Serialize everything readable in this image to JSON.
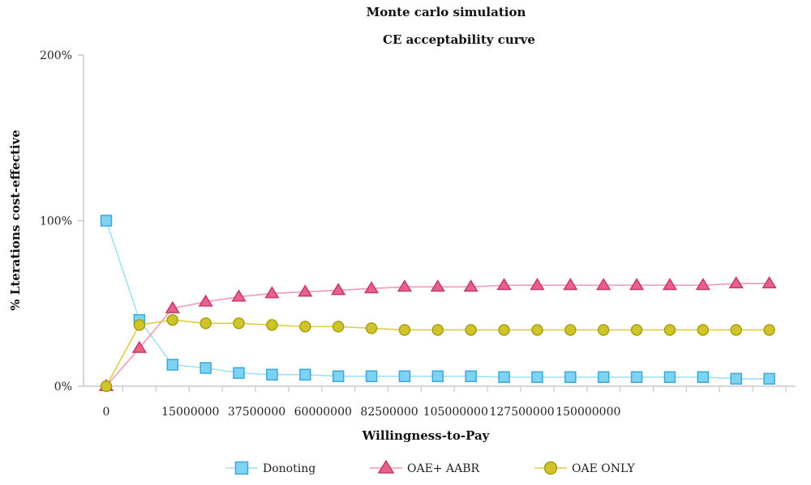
{
  "chart_data": {
    "type": "line",
    "title": "Monte carlo simulation",
    "subtitle": "CE acceptability curve",
    "xlabel": "Willingness-to-Pay",
    "ylabel": "% Lterations cost-effective",
    "ylim": [
      0,
      200
    ],
    "y_ticks": [
      "0%",
      "100%",
      "200%"
    ],
    "x_tick_labels": [
      "0",
      "15000000",
      "37500000",
      "60000000",
      "82500000",
      "105000000",
      "127500000",
      "150000000"
    ],
    "x_tick_positions": [
      0,
      2,
      4,
      6,
      8,
      10,
      12,
      14
    ],
    "x_count": 21,
    "grid": false,
    "legend_position": "bottom",
    "series": [
      {
        "name": "Donoting",
        "marker": "square",
        "color": "#7fd3f2",
        "stroke": "#3aa8d8",
        "line_color": "#9ee0f7",
        "values": [
          100,
          40,
          13,
          11,
          8,
          7,
          7,
          6,
          6,
          6,
          6,
          6,
          5.5,
          5.5,
          5.5,
          5.5,
          5.5,
          5.5,
          5.5,
          4.5,
          4.5
        ]
      },
      {
        "name": "OAE+ AABR",
        "marker": "triangle",
        "color": "#e8618a",
        "stroke": "#c43a66",
        "line_color": "#f29ab5",
        "values": [
          0,
          23,
          47,
          51,
          54,
          56,
          57,
          58,
          59,
          60,
          60,
          60,
          61,
          61,
          61,
          61,
          61,
          61,
          61,
          62,
          62
        ]
      },
      {
        "name": "OAE ONLY",
        "marker": "circle",
        "color": "#cfc42a",
        "stroke": "#a89e10",
        "line_color": "#d9cf45",
        "values": [
          0,
          37,
          40,
          38,
          38,
          37,
          36,
          36,
          35,
          34,
          34,
          34,
          34,
          34,
          34,
          34,
          34,
          34,
          34,
          34,
          34
        ]
      }
    ]
  }
}
